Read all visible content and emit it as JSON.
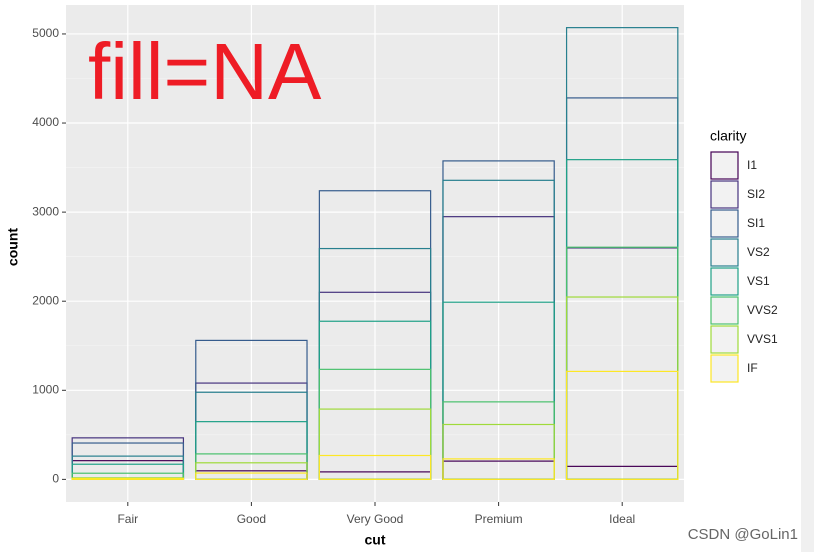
{
  "chart_data": {
    "type": "bar",
    "position": "identity",
    "annotation": "fill=NA",
    "watermark": "CSDN @GoLin1",
    "xlabel": "cut",
    "ylabel": "count",
    "legend_title": "clarity",
    "legend": "right",
    "grid": true,
    "categories": [
      "Fair",
      "Good",
      "Very Good",
      "Premium",
      "Ideal"
    ],
    "series": [
      {
        "name": "I1",
        "color": "#440154",
        "values": [
          210,
          96,
          84,
          205,
          146
        ]
      },
      {
        "name": "SI2",
        "color": "#46337E",
        "values": [
          466,
          1081,
          2100,
          2949,
          2598
        ]
      },
      {
        "name": "SI1",
        "color": "#365C8D",
        "values": [
          408,
          1560,
          3240,
          3575,
          4282
        ]
      },
      {
        "name": "VS2",
        "color": "#277F8E",
        "values": [
          261,
          978,
          2591,
          3357,
          5071
        ]
      },
      {
        "name": "VS1",
        "color": "#1FA187",
        "values": [
          170,
          648,
          1775,
          1989,
          3589
        ]
      },
      {
        "name": "VVS2",
        "color": "#4AC16D",
        "values": [
          69,
          286,
          1235,
          870,
          2606
        ]
      },
      {
        "name": "VVS1",
        "color": "#9FDA3A",
        "values": [
          17,
          186,
          789,
          616,
          2047
        ]
      },
      {
        "name": "IF",
        "color": "#FDE725",
        "values": [
          9,
          71,
          268,
          230,
          1212
        ]
      }
    ],
    "ylim": [
      -254,
      5325
    ],
    "yticks": [
      0,
      1000,
      2000,
      3000,
      4000,
      5000
    ],
    "minor_yticks": [
      500,
      1500,
      2500,
      3500,
      4500
    ]
  }
}
